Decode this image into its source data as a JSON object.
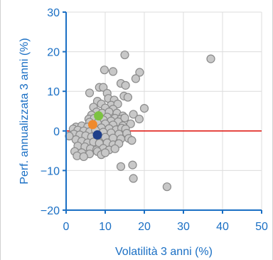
{
  "chart_data": {
    "type": "scatter",
    "xlabel": "Volatilità 3 anni (%)",
    "ylabel": "Perf. annualizzata 3 anni (%)",
    "xlim": [
      0,
      50
    ],
    "ylim": [
      -20,
      30
    ],
    "xticks": [
      0,
      10,
      20,
      30,
      40,
      50
    ],
    "yticks": [
      -20,
      -10,
      0,
      10,
      20,
      30
    ],
    "grid": true,
    "reference_line": {
      "y": 0,
      "color": "#e0201b"
    },
    "colors": {
      "axis": "#1a6fc4",
      "peer": "#c8c8c8",
      "peer_edge": "#8a8a8a",
      "highlight_green": "#7cc242",
      "highlight_orange": "#f08a2c",
      "highlight_navy": "#1f3f8a"
    },
    "series": [
      {
        "role": "peers",
        "points": [
          [
            15.0,
            19.2
          ],
          [
            37.0,
            18.2
          ],
          [
            9.8,
            15.4
          ],
          [
            12.0,
            15.0
          ],
          [
            18.8,
            14.8
          ],
          [
            17.8,
            13.2
          ],
          [
            8.5,
            11.0
          ],
          [
            9.5,
            11.0
          ],
          [
            14.0,
            12.0
          ],
          [
            15.2,
            11.5
          ],
          [
            6.0,
            9.6
          ],
          [
            10.5,
            9.5
          ],
          [
            14.8,
            8.8
          ],
          [
            15.8,
            8.5
          ],
          [
            10.8,
            8.2
          ],
          [
            12.3,
            7.8
          ],
          [
            8.0,
            7.5
          ],
          [
            9.0,
            6.8
          ],
          [
            11.5,
            6.5
          ],
          [
            13.2,
            6.8
          ],
          [
            20.0,
            5.7
          ],
          [
            7.0,
            6.0
          ],
          [
            10.0,
            5.8
          ],
          [
            12.0,
            5.5
          ],
          [
            7.8,
            4.8
          ],
          [
            9.2,
            4.5
          ],
          [
            11.0,
            4.8
          ],
          [
            13.0,
            4.5
          ],
          [
            14.5,
            3.8
          ],
          [
            17.2,
            4.2
          ],
          [
            6.5,
            4.0
          ],
          [
            8.3,
            3.8
          ],
          [
            10.5,
            3.5
          ],
          [
            12.5,
            3.2
          ],
          [
            14.0,
            3.0
          ],
          [
            15.0,
            3.3
          ],
          [
            18.7,
            3.0
          ],
          [
            5.8,
            3.0
          ],
          [
            7.2,
            3.2
          ],
          [
            9.5,
            2.8
          ],
          [
            11.5,
            2.5
          ],
          [
            13.3,
            2.3
          ],
          [
            6.0,
            2.2
          ],
          [
            8.0,
            2.0
          ],
          [
            10.0,
            1.8
          ],
          [
            12.0,
            1.5
          ],
          [
            14.5,
            1.3
          ],
          [
            16.5,
            1.8
          ],
          [
            2.5,
            1.0
          ],
          [
            4.0,
            1.3
          ],
          [
            5.5,
            1.0
          ],
          [
            7.0,
            0.8
          ],
          [
            9.0,
            0.8
          ],
          [
            11.0,
            0.6
          ],
          [
            12.8,
            0.3
          ],
          [
            14.2,
            0.7
          ],
          [
            15.2,
            0.5
          ],
          [
            1.8,
            0.5
          ],
          [
            3.0,
            0.2
          ],
          [
            4.5,
            0.0
          ],
          [
            6.0,
            -0.2
          ],
          [
            7.5,
            0.2
          ],
          [
            9.5,
            -0.3
          ],
          [
            11.5,
            -0.5
          ],
          [
            13.5,
            -0.8
          ],
          [
            15.5,
            -0.6
          ],
          [
            2.0,
            -0.8
          ],
          [
            3.5,
            -1.0
          ],
          [
            5.0,
            -1.2
          ],
          [
            6.5,
            -1.5
          ],
          [
            8.0,
            -1.3
          ],
          [
            10.0,
            -1.6
          ],
          [
            12.0,
            -1.8
          ],
          [
            14.0,
            -2.0
          ],
          [
            16.0,
            -1.9
          ],
          [
            2.5,
            -2.2
          ],
          [
            4.0,
            -2.6
          ],
          [
            5.5,
            -3.0
          ],
          [
            7.0,
            -2.8
          ],
          [
            8.5,
            -3.1
          ],
          [
            10.5,
            -3.0
          ],
          [
            12.0,
            -3.5
          ],
          [
            13.5,
            -3.2
          ],
          [
            16.8,
            -2.4
          ],
          [
            3.0,
            -3.8
          ],
          [
            4.8,
            -4.0
          ],
          [
            6.2,
            -4.5
          ],
          [
            7.8,
            -4.8
          ],
          [
            9.5,
            -4.4
          ],
          [
            11.0,
            -4.8
          ],
          [
            12.5,
            -4.5
          ],
          [
            2.2,
            -5.2
          ],
          [
            4.0,
            -5.5
          ],
          [
            6.0,
            -5.8
          ],
          [
            8.0,
            -5.2
          ],
          [
            9.0,
            -6.0
          ],
          [
            10.0,
            -5.5
          ],
          [
            2.8,
            -6.3
          ],
          [
            4.5,
            -6.5
          ],
          [
            14.0,
            -9.0
          ],
          [
            17.0,
            -8.6
          ],
          [
            17.2,
            -12.0
          ],
          [
            25.8,
            -14.1
          ],
          [
            0.8,
            -1.3
          ]
        ]
      },
      {
        "role": "highlight",
        "color": "highlight_green",
        "x": 8.3,
        "y": 3.8
      },
      {
        "role": "highlight",
        "color": "highlight_orange",
        "x": 6.8,
        "y": 1.6
      },
      {
        "role": "highlight",
        "color": "highlight_navy",
        "x": 8.0,
        "y": -1.0
      }
    ]
  }
}
